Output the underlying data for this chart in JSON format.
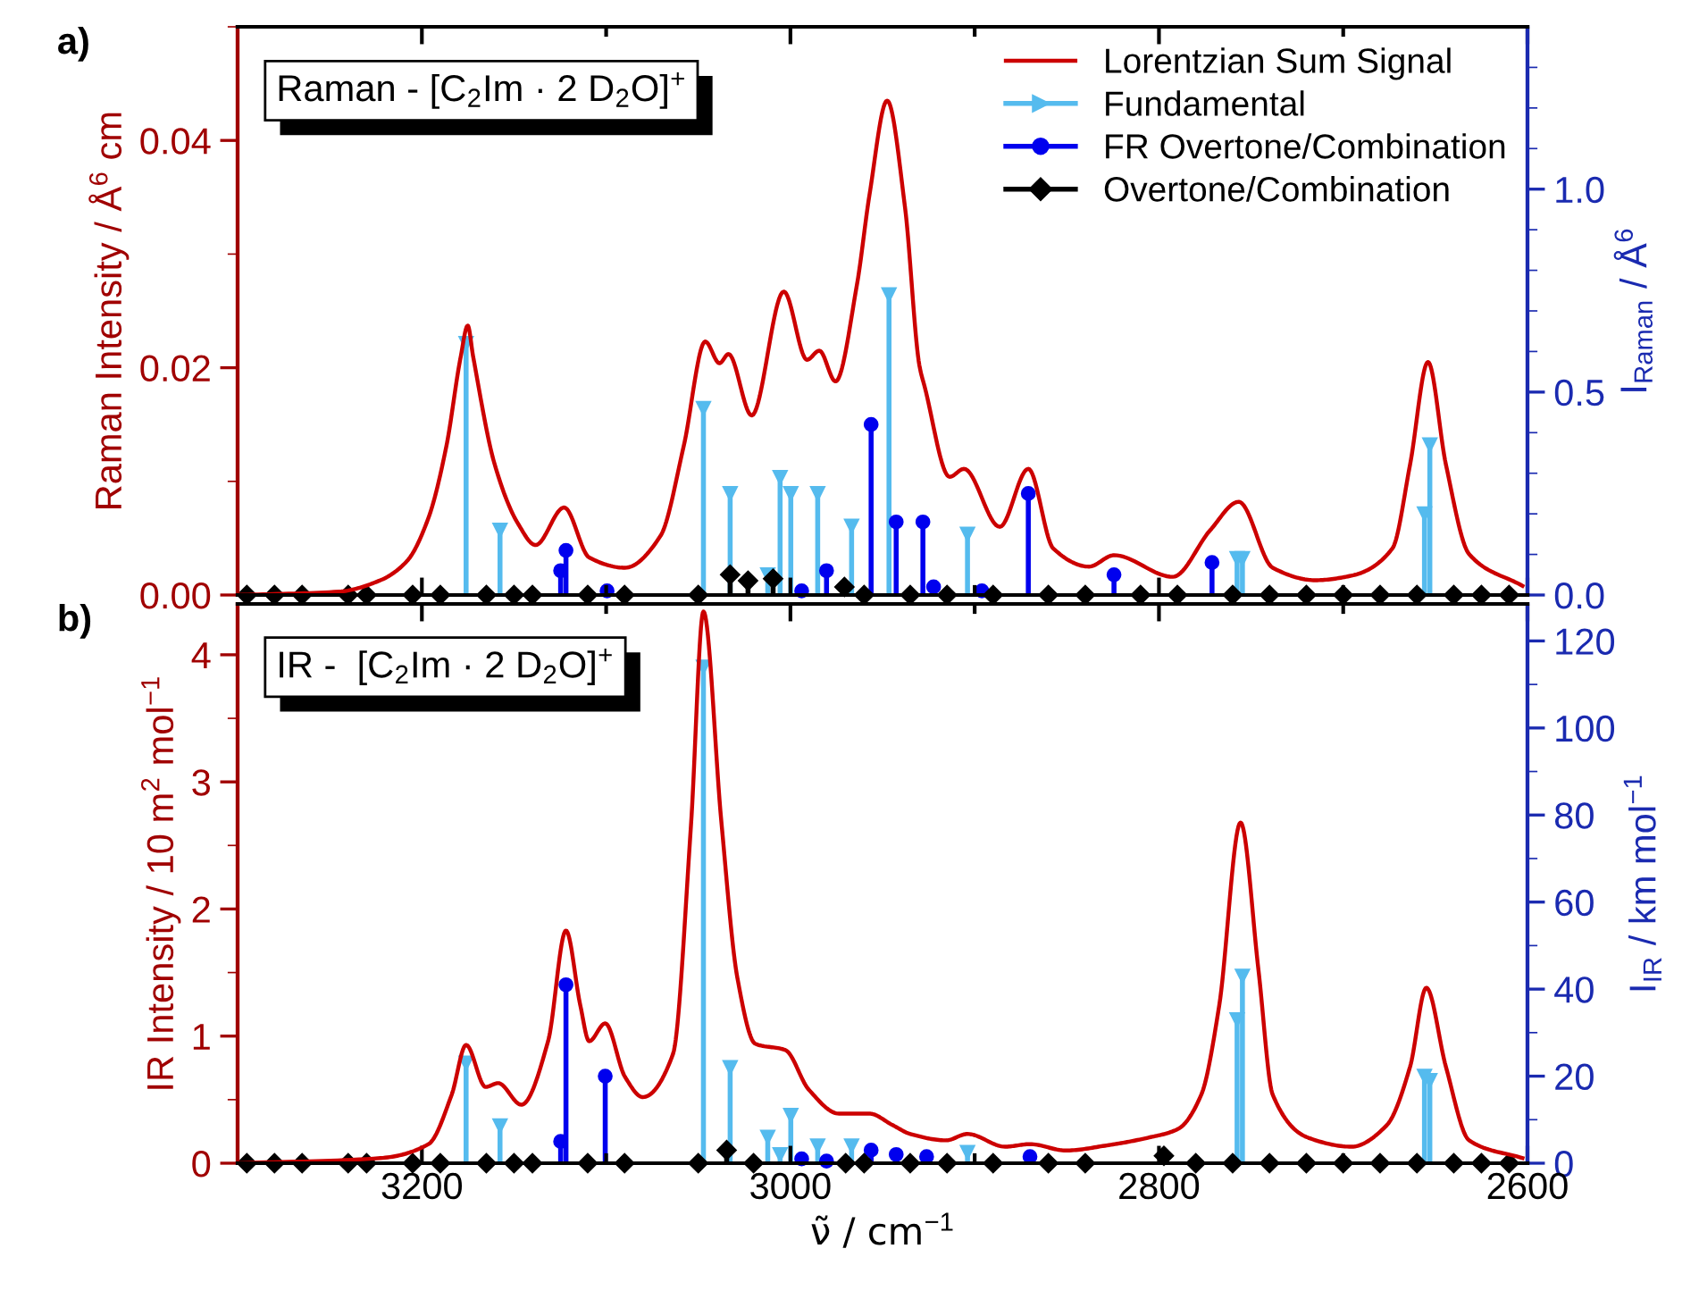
{
  "chart_data": [
    {
      "type": "line",
      "title": "Raman - [C$_{2}$Im · 2 D$_{2}$O]$^{+}$",
      "annotations": [
        "a)"
      ],
      "ylabel": "Raman Intensity / Å$^{6}$ cm",
      "y2label": "I$_{Raman}$ / Å$^{6}$",
      "tick_labels": "y",
      "legend": "top right",
      "xlim": [
        3300,
        2600
      ],
      "xticks": [
        3200,
        3000,
        2800,
        2600,
        {
          "value": 3100,
          "label": null
        },
        {
          "value": 2900,
          "label": null
        },
        {
          "value": 2700,
          "label": null
        }
      ],
      "ylim": [
        0,
        0.05
      ],
      "yticks": [
        {
          "value": 0,
          "label": "0.00"
        },
        0.02,
        0.04,
        {
          "value": 0.01,
          "label": null
        },
        {
          "value": 0.03,
          "label": null
        },
        {
          "value": 0.05,
          "label": null
        }
      ],
      "y2lim": [
        0,
        1.4
      ],
      "y2ticks": [
        {
          "value": 0,
          "label": "0.0"
        },
        0.5,
        {
          "value": 1,
          "label": "1.0"
        },
        {
          "value": 0.1,
          "label": null
        },
        {
          "value": 0.2,
          "label": null
        },
        {
          "value": 0.3,
          "label": null
        },
        {
          "value": 0.4,
          "label": null
        },
        {
          "value": 0.6,
          "label": null
        },
        {
          "value": 0.7,
          "label": null
        },
        {
          "value": 0.8,
          "label": null
        },
        {
          "value": 0.9,
          "label": null
        },
        {
          "value": 1.1,
          "label": null
        },
        {
          "value": 1.2,
          "label": null
        },
        {
          "value": 1.3,
          "label": null
        }
      ],
      "series": [
        {
          "name": "Lorentzian Sum Signal",
          "axis": "y",
          "color": "#cc0000",
          "x": [
            3300,
            3244.8,
            3222.5,
            3208,
            3196.4,
            3186.7,
            3179,
            3175.1,
            3172.2,
            3160.5,
            3147.9,
            3138.3,
            3122.8,
            3109.2,
            3089.8,
            3070.5,
            3057.9,
            3046.2,
            3038.5,
            3033.6,
            3021,
            3003.6,
            2991,
            2984.3,
            2975.5,
            2963.9,
            2957.1,
            2947.5,
            2937.8,
            2930,
            2927.1,
            2913.6,
            2905.8,
            2886.4,
            2870.9,
            2857.4,
            2838,
            2824.4,
            2792.5,
            2772.2,
            2756.7,
            2738.3,
            2715,
            2695.6,
            2673.3,
            2663.7,
            2654,
            2644.3,
            2631.7,
            2602.7
          ],
          "values": [
            0,
            0.0003,
            0.0013,
            0.003,
            0.0068,
            0.0131,
            0.0209,
            0.0237,
            0.021,
            0.0115,
            0.0063,
            0.0044,
            0.0077,
            0.0033,
            0.0024,
            0.0052,
            0.0131,
            0.0223,
            0.0204,
            0.0212,
            0.0158,
            0.0267,
            0.0207,
            0.0215,
            0.0188,
            0.0273,
            0.0352,
            0.0435,
            0.0341,
            0.0202,
            0.0183,
            0.0104,
            0.0111,
            0.006,
            0.0111,
            0.0041,
            0.0025,
            0.0035,
            0.0016,
            0.0057,
            0.0082,
            0.0024,
            0.0013,
            0.0017,
            0.0041,
            0.0115,
            0.0205,
            0.0115,
            0.0036,
            0.0008
          ]
        },
        {
          "name": "Fundamental",
          "type": "lollipop",
          "axis": "y2",
          "color": "#55bbee",
          "marker": "triangle",
          "x": [
            3176,
            3157.6,
            3047.2,
            3032.7,
            3012.3,
            3005.6,
            2999.8,
            2985.2,
            2966.8,
            2946.5,
            2903.9,
            2757.6,
            2754.7,
            2655.9,
            2653
          ],
          "values": [
            0.62,
            0.16,
            0.46,
            0.25,
            0.05,
            0.29,
            0.25,
            0.25,
            0.17,
            0.74,
            0.15,
            0.09,
            0.09,
            0.2,
            0.37
          ]
        },
        {
          "name": "FR Overtone/Combination",
          "type": "lollipop",
          "axis": "y2",
          "color": "#0000ee",
          "marker": "circle",
          "x": [
            3124.7,
            3121.8,
            3099.5,
            2993.9,
            2980.4,
            2956.2,
            2942.6,
            2928.1,
            2922.3,
            2896.1,
            2870.9,
            2824.4,
            2771.2
          ],
          "values": [
            0.06,
            0.11,
            0.01,
            0.01,
            0.06,
            0.42,
            0.18,
            0.18,
            0.02,
            0.01,
            0.25,
            0.05,
            0.08
          ]
        },
        {
          "name": "Overtone/Combination",
          "type": "lollipop",
          "axis": "y2",
          "color": "#000000",
          "marker": "diamond",
          "x": [
            3295,
            3280,
            3265,
            3240,
            3230,
            3205,
            3190,
            3165,
            3150,
            3140,
            3110,
            3090,
            3050,
            3032.7,
            3023,
            3009.4,
            2970.7,
            2960,
            2935,
            2915,
            2890,
            2860,
            2840,
            2810,
            2790,
            2760,
            2740,
            2720,
            2700,
            2680,
            2660,
            2640,
            2625,
            2610
          ],
          "values": [
            0,
            0,
            0,
            0,
            0,
            0,
            0,
            0,
            0,
            0,
            0,
            0,
            0,
            0.05,
            0.035,
            0.04,
            0.02,
            0,
            0,
            0,
            0,
            0,
            0,
            0,
            0,
            0,
            0,
            0,
            0,
            0,
            0,
            0,
            0,
            0
          ]
        }
      ]
    },
    {
      "type": "line",
      "title": "IR -  [C$_{2}$Im · 2 D$_{2}$O]$^{+}$",
      "annotations": [
        "b)"
      ],
      "xlabel": "ν̃ / cm$^{−1}$",
      "ylabel": "IR Intensity / 10 m$^{2}$ mol$^{−1}$",
      "y2label": "I$_{IR}$ / km mol$^{−1}$",
      "xlim": [
        3300,
        2600
      ],
      "xticks": [
        3200,
        3000,
        2800,
        2600,
        {
          "value": 3100,
          "label": null
        },
        {
          "value": 2900,
          "label": null
        },
        {
          "value": 2700,
          "label": null
        }
      ],
      "ylim": [
        0,
        4.4
      ],
      "yticks": [
        0,
        1,
        2,
        3,
        4,
        {
          "value": 0.5,
          "label": null
        },
        {
          "value": 1.5,
          "label": null
        },
        {
          "value": 2.5,
          "label": null
        },
        {
          "value": 3.5,
          "label": null
        }
      ],
      "y2lim": [
        0,
        128.5
      ],
      "y2ticks": [
        0,
        20,
        40,
        60,
        80,
        100,
        120,
        {
          "value": 10,
          "label": null
        },
        {
          "value": 30,
          "label": null
        },
        {
          "value": 50,
          "label": null
        },
        {
          "value": 70,
          "label": null
        },
        {
          "value": 90,
          "label": null
        },
        {
          "value": 110,
          "label": null
        }
      ],
      "series": [
        {
          "axis": "y",
          "color": "#cc0000",
          "x": [
            3300,
            3222.5,
            3196.4,
            3183.8,
            3176,
            3165.4,
            3158.6,
            3146,
            3131.5,
            3121.8,
            3114,
            3109.2,
            3100.5,
            3089.8,
            3080.1,
            3063.7,
            3054,
            3047.2,
            3037.5,
            3028.8,
            3019.1,
            3002.7,
            2990.1,
            2973.6,
            2957.1,
            2944.6,
            2934.9,
            2915.5,
            2903.9,
            2883.5,
            2870,
            2850.6,
            2828.3,
            2806.1,
            2789.6,
            2777,
            2767.3,
            2755.7,
            2746,
            2738.3,
            2718.9,
            2695.6,
            2676.3,
            2663.7,
            2654.9,
            2644.3,
            2631.7,
            2602.7
          ],
          "values": [
            0,
            0.04,
            0.15,
            0.54,
            0.93,
            0.6,
            0.63,
            0.46,
            0.96,
            1.83,
            1.24,
            0.96,
            1.1,
            0.68,
            0.52,
            0.86,
            2.65,
            4.34,
            2.69,
            1.46,
            0.94,
            0.89,
            0.58,
            0.39,
            0.39,
            0.3,
            0.23,
            0.18,
            0.23,
            0.13,
            0.15,
            0.1,
            0.14,
            0.2,
            0.27,
            0.54,
            1.24,
            2.68,
            1.52,
            0.54,
            0.2,
            0.13,
            0.3,
            0.76,
            1.38,
            0.76,
            0.18,
            0.04
          ]
        },
        {
          "type": "lollipop",
          "axis": "y2",
          "color": "#55bbee",
          "marker": "triangle",
          "x": [
            3176,
            3157.6,
            3047.2,
            3032.7,
            3012.3,
            3005.6,
            2999.8,
            2985.2,
            2966.8,
            2903.9,
            2757.6,
            2754.7,
            2655.9,
            2653
          ],
          "values": [
            23,
            8.6,
            114,
            22,
            6,
            2,
            11,
            4,
            4,
            2.5,
            33,
            43,
            20,
            19
          ]
        },
        {
          "type": "lollipop",
          "axis": "y2",
          "color": "#0000ee",
          "marker": "circle",
          "x": [
            3124.7,
            3121.8,
            3100.5,
            2993.9,
            2980.4,
            2956.2,
            2942.6,
            2926.1,
            2870
          ],
          "values": [
            5,
            41,
            20,
            1,
            0.5,
            3,
            2,
            1.5,
            1.5
          ]
        },
        {
          "type": "lollipop",
          "axis": "y2",
          "color": "#000000",
          "marker": "diamond",
          "x": [
            3295,
            3280,
            3265,
            3240,
            3230,
            3205,
            3190,
            3165,
            3150,
            3140,
            3110,
            3090,
            3050,
            3034.6,
            3020,
            2970,
            2960,
            2935,
            2915,
            2890,
            2860,
            2840,
            2797.3,
            2780,
            2760,
            2740,
            2720,
            2700,
            2680,
            2660,
            2640,
            2625,
            2610
          ],
          "values": [
            0,
            0,
            0,
            0,
            0,
            0,
            0,
            0,
            0,
            0,
            0,
            0,
            0,
            3,
            0,
            0,
            0,
            0,
            0,
            0,
            0,
            0,
            1.7,
            0,
            0,
            0,
            0,
            0,
            0,
            0,
            0,
            0,
            0
          ]
        }
      ]
    }
  ]
}
